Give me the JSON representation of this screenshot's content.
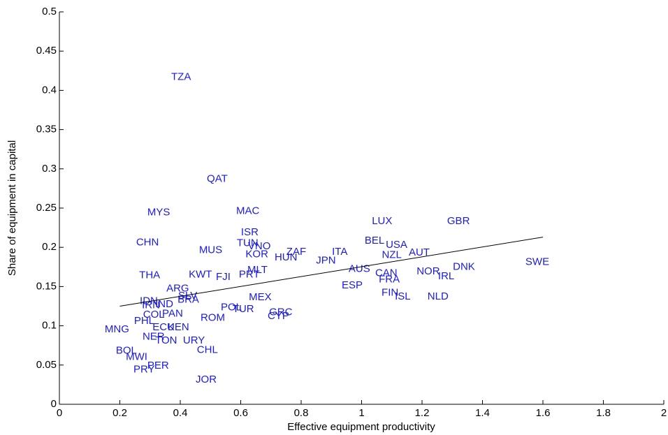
{
  "chart_data": {
    "type": "scatter",
    "x_label": "Effective equipment productivity",
    "y_label": "Share of equipment in capital",
    "xlim": [
      0,
      2
    ],
    "xticks": [
      0,
      0.2,
      0.4,
      0.6,
      0.8,
      1,
      1.2,
      1.4,
      1.6,
      1.8,
      2
    ],
    "ylim": [
      0,
      0.5
    ],
    "yticks": [
      0,
      0.05,
      0.1,
      0.15,
      0.2,
      0.25,
      0.3,
      0.35,
      0.4,
      0.45,
      0.5
    ],
    "grid": false,
    "series": [
      {
        "color": "#1a1ae6",
        "labels": [
          "TZA",
          "QAT",
          "MYS",
          "MAC",
          "CHN",
          "ISR",
          "TUN",
          "VNO",
          "KOR",
          "MUS",
          "HUN",
          "ZAF",
          "ITA",
          "JPN",
          "LUX",
          "GBR",
          "BEL",
          "USA",
          "NZL",
          "AUT",
          "DNK",
          "SWE",
          "NOR",
          "IRL",
          "AUS",
          "CAN",
          "FRA",
          "ESP",
          "FIN",
          "ISL",
          "NLD",
          "THA",
          "KWT",
          "FJI",
          "PRT",
          "MLT",
          "ARG",
          "SLV",
          "BRA",
          "MEX",
          "IDN",
          "IRN",
          "IND",
          "COL",
          "PAN",
          "PHL",
          "ECU",
          "KEN",
          "MNG",
          "NER",
          "TON",
          "URY",
          "CHL",
          "BOL",
          "MWI",
          "PER",
          "PRY",
          "JOR",
          "ROM",
          "POL",
          "TUR",
          "GRC",
          "CYP"
        ],
        "x": [
          0.37,
          0.488,
          0.291,
          0.585,
          0.254,
          0.601,
          0.587,
          0.624,
          0.616,
          0.462,
          0.712,
          0.751,
          0.902,
          0.849,
          1.034,
          1.283,
          1.01,
          1.08,
          1.067,
          1.156,
          1.302,
          1.542,
          1.182,
          1.253,
          0.957,
          1.045,
          1.057,
          0.934,
          1.066,
          1.11,
          1.218,
          0.264,
          0.428,
          0.518,
          0.594,
          0.622,
          0.354,
          0.393,
          0.391,
          0.627,
          0.266,
          0.273,
          0.317,
          0.277,
          0.34,
          0.247,
          0.308,
          0.358,
          0.15,
          0.275,
          0.317,
          0.409,
          0.455,
          0.187,
          0.22,
          0.291,
          0.245,
          0.451,
          0.467,
          0.534,
          0.573,
          0.694,
          0.689
        ],
        "y": [
          0.417,
          0.287,
          0.244,
          0.246,
          0.206,
          0.219,
          0.205,
          0.201,
          0.191,
          0.196,
          0.187,
          0.194,
          0.194,
          0.183,
          0.233,
          0.233,
          0.208,
          0.203,
          0.19,
          0.193,
          0.175,
          0.181,
          0.169,
          0.163,
          0.172,
          0.167,
          0.159,
          0.151,
          0.142,
          0.137,
          0.137,
          0.164,
          0.165,
          0.162,
          0.165,
          0.171,
          0.147,
          0.138,
          0.133,
          0.136,
          0.131,
          0.126,
          0.127,
          0.114,
          0.115,
          0.106,
          0.098,
          0.098,
          0.095,
          0.086,
          0.081,
          0.081,
          0.069,
          0.068,
          0.06,
          0.049,
          0.044,
          0.031,
          0.11,
          0.123,
          0.121,
          0.117,
          0.112
        ]
      }
    ],
    "fit": {
      "color": "#000000",
      "x": [
        0.2,
        1.6
      ],
      "y": [
        0.125,
        0.213
      ]
    }
  }
}
